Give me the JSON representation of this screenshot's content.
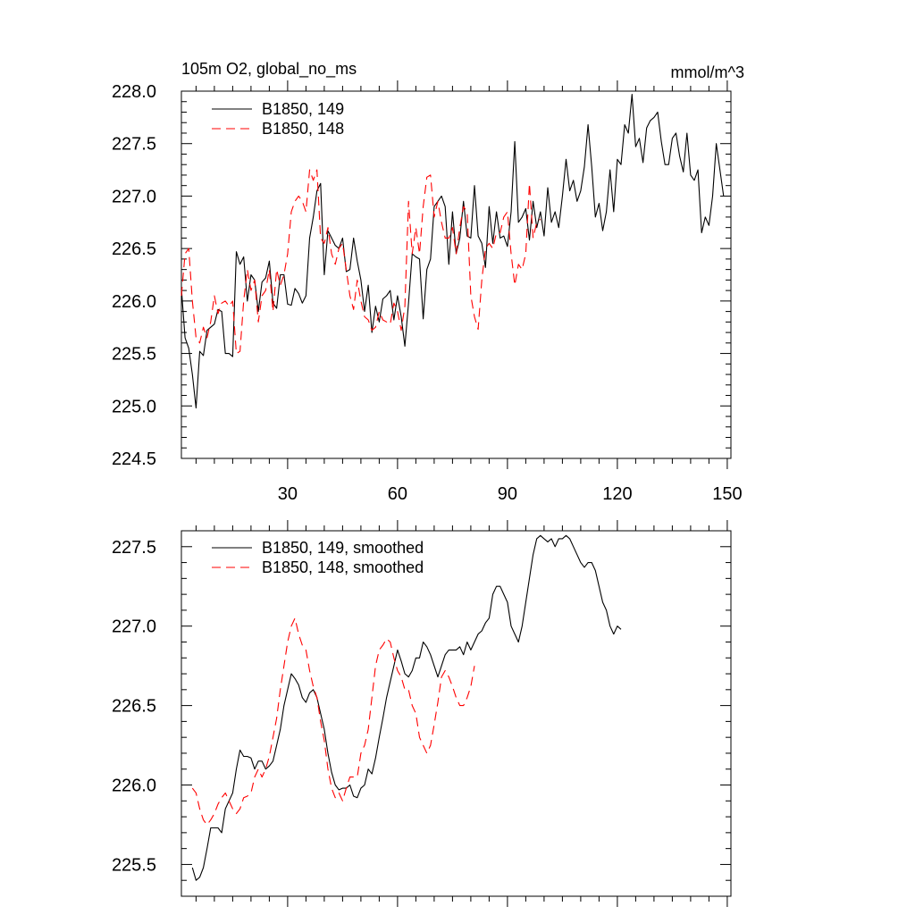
{
  "chart_data": [
    {
      "type": "line",
      "title": "105m O2, global_no_ms",
      "units": "mmol/m^3",
      "xlim": [
        1,
        151
      ],
      "ylim": [
        224.5,
        228.0
      ],
      "xticks": [
        30,
        60,
        90,
        120,
        150
      ],
      "xtick_labels": [
        "30",
        "60",
        "90",
        "120",
        "150"
      ],
      "yticks": [
        224.5,
        225.0,
        225.5,
        226.0,
        226.5,
        227.0,
        227.5,
        228.0
      ],
      "ytick_labels": [
        "224.5",
        "225.0",
        "225.5",
        "226.0",
        "226.5",
        "227.0",
        "227.5",
        "228.0"
      ],
      "legend_position": "top-left",
      "series": [
        {
          "name": "B1850, 149",
          "color": "#000000",
          "dash": "solid",
          "x_start": 1,
          "values": [
            226.12,
            225.65,
            225.55,
            225.3,
            224.98,
            225.52,
            225.48,
            225.72,
            225.75,
            225.78,
            225.92,
            225.9,
            225.5,
            225.5,
            225.47,
            226.47,
            226.35,
            226.42,
            226.0,
            226.25,
            226.2,
            225.9,
            226.18,
            226.22,
            226.38,
            225.98,
            225.93,
            226.25,
            226.25,
            225.97,
            225.96,
            226.12,
            226.07,
            225.98,
            226.05,
            226.6,
            226.8,
            227.05,
            227.12,
            226.25,
            226.67,
            226.6,
            226.53,
            226.5,
            226.6,
            226.28,
            226.3,
            226.6,
            226.38,
            226.2,
            225.9,
            226.15,
            225.7,
            225.95,
            225.8,
            226.02,
            226.05,
            226.1,
            225.82,
            226.05,
            225.85,
            225.57,
            225.98,
            226.45,
            226.42,
            226.4,
            225.83,
            226.3,
            226.4,
            226.9,
            226.95,
            227.0,
            226.9,
            226.35,
            226.85,
            226.45,
            226.6,
            226.95,
            226.62,
            226.6,
            227.1,
            226.62,
            226.55,
            226.32,
            226.9,
            226.55,
            226.85,
            226.6,
            226.62,
            226.52,
            226.85,
            227.52,
            226.75,
            226.8,
            226.88,
            226.58,
            226.95,
            226.7,
            226.85,
            226.62,
            227.08,
            226.75,
            226.85,
            226.7,
            227.0,
            227.35,
            227.05,
            227.15,
            226.95,
            227.05,
            227.28,
            227.68,
            227.28,
            226.8,
            226.93,
            226.67,
            226.85,
            227.25,
            226.85,
            227.35,
            227.3,
            227.68,
            227.6,
            227.97,
            227.47,
            227.55,
            227.32,
            227.65,
            227.72,
            227.75,
            227.8,
            227.52,
            227.3,
            227.3,
            227.55,
            227.6,
            227.38,
            227.23,
            227.6,
            227.2,
            227.15,
            227.25,
            226.65,
            226.8,
            226.72,
            227.0,
            227.5,
            227.25,
            227.0
          ]
        },
        {
          "name": "B1850, 148",
          "color": "#ff0000",
          "dash": "dashed",
          "x_start": 1,
          "values": [
            226.05,
            226.45,
            226.5,
            226.0,
            225.65,
            225.6,
            225.75,
            225.65,
            225.8,
            226.05,
            225.88,
            225.98,
            226.0,
            225.95,
            226.0,
            225.5,
            225.52,
            226.0,
            226.3,
            226.1,
            226.2,
            225.8,
            226.05,
            226.1,
            226.3,
            225.9,
            226.3,
            226.15,
            226.25,
            226.45,
            226.85,
            226.95,
            227.0,
            226.95,
            226.85,
            227.25,
            227.15,
            227.25,
            226.6,
            226.55,
            226.7,
            226.45,
            226.35,
            226.5,
            226.55,
            226.3,
            226.05,
            225.92,
            226.2,
            226.0,
            225.85,
            225.82,
            225.72,
            225.75,
            225.9,
            225.82,
            225.8,
            225.78,
            225.98,
            225.9,
            225.72,
            225.95,
            226.95,
            226.45,
            226.7,
            226.45,
            226.9,
            227.18,
            227.2,
            226.8,
            226.95,
            226.75,
            226.6,
            226.6,
            226.7,
            226.45,
            226.7,
            226.9,
            226.85,
            226.05,
            225.85,
            225.73,
            226.2,
            226.5,
            226.55,
            226.5,
            226.65,
            226.65,
            226.8,
            226.85,
            226.45,
            226.15,
            226.35,
            226.3,
            226.45,
            227.12,
            226.6,
            226.75,
            226.78
          ]
        }
      ]
    },
    {
      "type": "line",
      "xlim": [
        1,
        151
      ],
      "ylim": [
        225.3,
        227.6
      ],
      "xticks": [
        30,
        60,
        90,
        120,
        150
      ],
      "yticks": [
        225.5,
        226.0,
        226.5,
        227.0,
        227.5
      ],
      "ytick_labels": [
        "225.5",
        "226.0",
        "226.5",
        "227.0",
        "227.5"
      ],
      "legend_position": "top-left",
      "series": [
        {
          "name": "B1850, 149, smoothed",
          "color": "#000000",
          "dash": "solid",
          "x_start": 4,
          "values": [
            225.48,
            225.4,
            225.42,
            225.48,
            225.6,
            225.73,
            225.73,
            225.73,
            225.7,
            225.85,
            225.9,
            225.95,
            226.1,
            226.22,
            226.18,
            226.18,
            226.17,
            226.1,
            226.15,
            226.15,
            226.1,
            226.12,
            226.15,
            226.25,
            226.35,
            226.5,
            226.6,
            226.7,
            226.67,
            226.63,
            226.55,
            226.52,
            226.58,
            226.6,
            226.55,
            226.45,
            226.35,
            226.2,
            226.08,
            226.0,
            225.97,
            225.98,
            225.98,
            226.0,
            225.93,
            225.92,
            225.98,
            226.0,
            226.1,
            226.07,
            226.17,
            226.3,
            226.42,
            226.55,
            226.65,
            226.75,
            226.85,
            226.78,
            226.7,
            226.68,
            226.72,
            226.8,
            226.8,
            226.9,
            226.87,
            226.82,
            226.75,
            226.68,
            226.75,
            226.82,
            226.85,
            226.85,
            226.85,
            226.87,
            226.82,
            226.9,
            226.85,
            226.9,
            226.95,
            226.97,
            227.02,
            227.05,
            227.2,
            227.25,
            227.25,
            227.2,
            227.15,
            227.0,
            226.95,
            226.9,
            227.0,
            227.15,
            227.3,
            227.45,
            227.55,
            227.57,
            227.55,
            227.53,
            227.55,
            227.5,
            227.55,
            227.55,
            227.57,
            227.55,
            227.5,
            227.45,
            227.4,
            227.37,
            227.4,
            227.4,
            227.35,
            227.25,
            227.15,
            227.1,
            227.0,
            226.95,
            227.0,
            226.98
          ]
        },
        {
          "name": "B1850, 148, smoothed",
          "color": "#ff0000",
          "dash": "dashed",
          "x_start": 4,
          "values": [
            225.98,
            225.95,
            225.85,
            225.78,
            225.75,
            225.78,
            225.82,
            225.88,
            225.92,
            225.95,
            225.9,
            225.85,
            225.82,
            225.85,
            225.92,
            225.93,
            225.95,
            226.05,
            226.1,
            226.05,
            226.1,
            226.18,
            226.3,
            226.42,
            226.6,
            226.75,
            226.9,
            227.0,
            227.05,
            226.95,
            226.88,
            226.85,
            226.72,
            226.62,
            226.55,
            226.4,
            226.28,
            226.1,
            225.98,
            225.92,
            225.95,
            225.9,
            225.98,
            226.05,
            226.05,
            226.05,
            226.2,
            226.25,
            226.35,
            226.55,
            226.75,
            226.85,
            226.88,
            226.92,
            226.9,
            226.8,
            226.72,
            226.68,
            226.6,
            226.6,
            226.5,
            226.45,
            226.3,
            226.25,
            226.2,
            226.25,
            226.38,
            226.52,
            226.68,
            226.72,
            226.68,
            226.62,
            226.55,
            226.5,
            226.5,
            226.55,
            226.62,
            226.75
          ]
        }
      ]
    }
  ]
}
